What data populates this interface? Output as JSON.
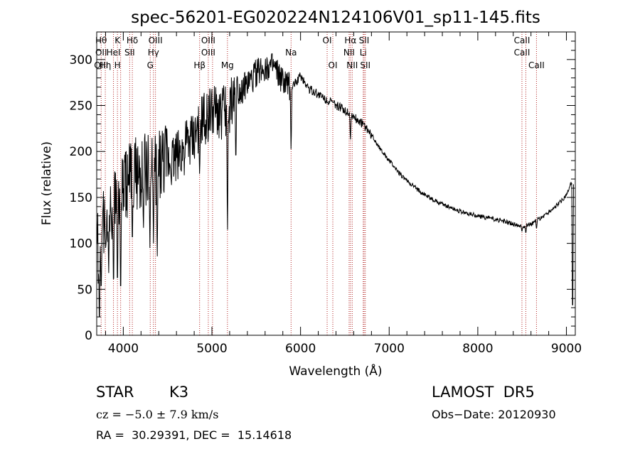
{
  "chart_data": {
    "type": "line",
    "title": "spec-56201-EG020224N124106V01_sp11-145.fits",
    "xlabel": "Wavelength (Å)",
    "ylabel": "Flux (relative)",
    "xlim": [
      3700,
      9100
    ],
    "ylim": [
      0,
      330
    ],
    "xticks": [
      4000,
      5000,
      6000,
      7000,
      8000,
      9000
    ],
    "yticks": [
      0,
      50,
      100,
      150,
      200,
      250,
      300
    ],
    "grid": false,
    "line_color": "#000000",
    "marker_line_color": "#b22222",
    "continuum": [
      [
        3700,
        90
      ],
      [
        3800,
        130
      ],
      [
        3900,
        150
      ],
      [
        4000,
        160
      ],
      [
        4100,
        175
      ],
      [
        4200,
        180
      ],
      [
        4300,
        178
      ],
      [
        4400,
        185
      ],
      [
        4500,
        190
      ],
      [
        4600,
        195
      ],
      [
        4700,
        205
      ],
      [
        4800,
        215
      ],
      [
        4900,
        235
      ],
      [
        5000,
        242
      ],
      [
        5100,
        240
      ],
      [
        5200,
        250
      ],
      [
        5300,
        265
      ],
      [
        5400,
        272
      ],
      [
        5500,
        285
      ],
      [
        5600,
        292
      ],
      [
        5700,
        290
      ],
      [
        5800,
        275
      ],
      [
        5900,
        270
      ],
      [
        6000,
        282
      ],
      [
        6100,
        268
      ],
      [
        6200,
        262
      ],
      [
        6300,
        256
      ],
      [
        6400,
        250
      ],
      [
        6500,
        245
      ],
      [
        6600,
        238
      ],
      [
        6700,
        230
      ],
      [
        6800,
        218
      ],
      [
        6900,
        203
      ],
      [
        7000,
        190
      ],
      [
        7100,
        178
      ],
      [
        7200,
        168
      ],
      [
        7300,
        160
      ],
      [
        7400,
        153
      ],
      [
        7500,
        147
      ],
      [
        7600,
        143
      ],
      [
        7700,
        139
      ],
      [
        7800,
        135
      ],
      [
        7900,
        132
      ],
      [
        8000,
        130
      ],
      [
        8100,
        128
      ],
      [
        8200,
        126
      ],
      [
        8300,
        124
      ],
      [
        8400,
        121
      ],
      [
        8500,
        119
      ],
      [
        8600,
        121
      ],
      [
        8700,
        127
      ],
      [
        8800,
        134
      ],
      [
        8900,
        142
      ],
      [
        9000,
        152
      ],
      [
        9050,
        165
      ]
    ],
    "absorption_dips": [
      [
        3730,
        0
      ],
      [
        3750,
        40
      ],
      [
        3800,
        95
      ],
      [
        3835,
        60
      ],
      [
        3890,
        40
      ],
      [
        3934,
        40
      ],
      [
        3970,
        28
      ],
      [
        4102,
        90
      ],
      [
        4227,
        110
      ],
      [
        4300,
        95
      ],
      [
        4340,
        100
      ],
      [
        4383,
        75
      ],
      [
        4861,
        170
      ],
      [
        5175,
        100
      ],
      [
        5270,
        180
      ],
      [
        5893,
        195
      ],
      [
        6563,
        210
      ],
      [
        8498,
        112
      ],
      [
        8542,
        110
      ],
      [
        8662,
        115
      ],
      [
        9070,
        0
      ]
    ],
    "line_markers": [
      {
        "wavelength": 3750,
        "labels": [
          "Hθ",
          "OII",
          "OIII"
        ]
      },
      {
        "wavelength": 3797,
        "labels": [
          "",
          "",
          "Hη"
        ]
      },
      {
        "wavelength": 3889,
        "labels": [
          "",
          "HeI",
          ""
        ]
      },
      {
        "wavelength": 3934,
        "labels": [
          "K",
          "",
          "H"
        ]
      },
      {
        "wavelength": 3970,
        "labels": [
          "",
          "",
          ""
        ]
      },
      {
        "wavelength": 4072,
        "labels": [
          "",
          "SII",
          ""
        ]
      },
      {
        "wavelength": 4102,
        "labels": [
          "Hδ",
          "",
          ""
        ]
      },
      {
        "wavelength": 4304,
        "labels": [
          "",
          "",
          "G"
        ]
      },
      {
        "wavelength": 4340,
        "labels": [
          "",
          "Hγ",
          ""
        ]
      },
      {
        "wavelength": 4363,
        "labels": [
          "OIII",
          "",
          ""
        ]
      },
      {
        "wavelength": 4861,
        "labels": [
          "",
          "",
          "Hβ"
        ]
      },
      {
        "wavelength": 4959,
        "labels": [
          "OIII",
          "OIII",
          ""
        ]
      },
      {
        "wavelength": 5007,
        "labels": [
          "",
          "",
          ""
        ]
      },
      {
        "wavelength": 5175,
        "labels": [
          "",
          "",
          "Mg"
        ]
      },
      {
        "wavelength": 5893,
        "labels": [
          "",
          "Na",
          ""
        ]
      },
      {
        "wavelength": 6300,
        "labels": [
          "OI",
          "",
          ""
        ]
      },
      {
        "wavelength": 6364,
        "labels": [
          "",
          "",
          "OI"
        ]
      },
      {
        "wavelength": 6548,
        "labels": [
          "",
          "NII",
          ""
        ]
      },
      {
        "wavelength": 6563,
        "labels": [
          "Hα",
          "",
          ""
        ]
      },
      {
        "wavelength": 6583,
        "labels": [
          "",
          "",
          "NII"
        ]
      },
      {
        "wavelength": 6707,
        "labels": [
          "",
          "Li",
          ""
        ]
      },
      {
        "wavelength": 6717,
        "labels": [
          "SII",
          "",
          ""
        ]
      },
      {
        "wavelength": 6731,
        "labels": [
          "",
          "",
          "SII"
        ]
      },
      {
        "wavelength": 8498,
        "labels": [
          "CaII",
          "CaII",
          ""
        ]
      },
      {
        "wavelength": 8542,
        "labels": [
          "",
          "",
          ""
        ]
      },
      {
        "wavelength": 8662,
        "labels": [
          "",
          "",
          "CaII"
        ]
      }
    ]
  },
  "info": {
    "class_label": "STAR",
    "subclass": "K3",
    "survey": "LAMOST  DR5",
    "cz": "cz = −5.0 ± 7.9 km/s",
    "obs_date": "Obs−Date: 20120930",
    "coords": "RA =  30.29391, DEC =  15.14618"
  }
}
